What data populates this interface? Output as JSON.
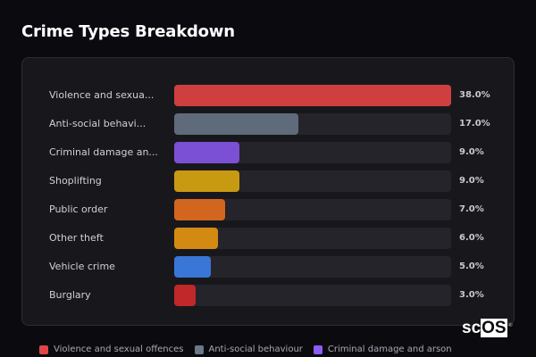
{
  "header": {
    "title": "Crime Types Breakdown"
  },
  "chart_data": {
    "type": "bar",
    "orientation": "horizontal",
    "title": "Crime Types Breakdown",
    "xlabel": "",
    "ylabel": "",
    "unit": "%",
    "categories": [
      "Violence and sexual offences",
      "Anti-social behaviour",
      "Criminal damage and arson",
      "Shoplifting",
      "Public order",
      "Other theft",
      "Vehicle crime",
      "Burglary"
    ],
    "display_labels": [
      "Violence and sexua...",
      "Anti-social behavi...",
      "Criminal damage an...",
      "Shoplifting",
      "Public order",
      "Other theft",
      "Vehicle crime",
      "Burglary"
    ],
    "values": [
      38.0,
      17.0,
      9.0,
      9.0,
      7.0,
      6.0,
      5.0,
      3.0
    ],
    "value_labels": [
      "38.0%",
      "17.0%",
      "9.0%",
      "9.0%",
      "7.0%",
      "6.0%",
      "5.0%",
      "3.0%"
    ],
    "colors": [
      "#cf3f3f",
      "#5f6b7a",
      "#7b50d4",
      "#c89a12",
      "#d2661e",
      "#d38a12",
      "#3a76d6",
      "#c0282a"
    ],
    "xlim": [
      0,
      38
    ],
    "grid": false,
    "legend_position": "bottom"
  },
  "legend": {
    "items": [
      {
        "label": "Violence and sexual offences",
        "color": "#e04646"
      },
      {
        "label": "Anti-social behaviour",
        "color": "#6b778a"
      },
      {
        "label": "Criminal damage and arson",
        "color": "#8b5cf6"
      }
    ]
  },
  "watermark": {
    "prefix": "sc",
    "boxed": "OS",
    "mark": "®"
  }
}
